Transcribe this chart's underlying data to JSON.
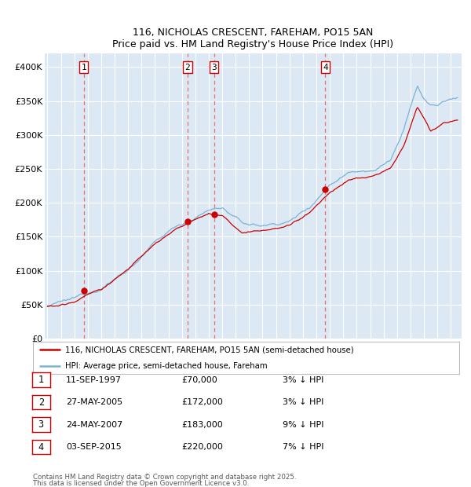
{
  "title_line1": "116, NICHOLAS CRESCENT, FAREHAM, PO15 5AN",
  "title_line2": "Price paid vs. HM Land Registry's House Price Index (HPI)",
  "ylim": [
    0,
    420000
  ],
  "yticks": [
    0,
    50000,
    100000,
    150000,
    200000,
    250000,
    300000,
    350000,
    400000
  ],
  "ytick_labels": [
    "£0",
    "£50K",
    "£100K",
    "£150K",
    "£200K",
    "£250K",
    "£300K",
    "£350K",
    "£400K"
  ],
  "fig_bg_color": "#ffffff",
  "plot_bg_color": "#dce9f5",
  "grid_color": "#ffffff",
  "hpi_color": "#7ab3d4",
  "price_color": "#cc0000",
  "sale_marker_color": "#cc0000",
  "vline_color": "#e87070",
  "annotation_box_edgecolor": "#cc0000",
  "sales": [
    {
      "label": "1",
      "date_x": 1997.7,
      "price": 70000
    },
    {
      "label": "2",
      "date_x": 2005.41,
      "price": 172000
    },
    {
      "label": "3",
      "date_x": 2007.39,
      "price": 183000
    },
    {
      "label": "4",
      "date_x": 2015.67,
      "price": 220000
    }
  ],
  "sale_table": [
    {
      "num": "1",
      "date": "11-SEP-1997",
      "price": "£70,000",
      "hpi": "3% ↓ HPI"
    },
    {
      "num": "2",
      "date": "27-MAY-2005",
      "price": "£172,000",
      "hpi": "3% ↓ HPI"
    },
    {
      "num": "3",
      "date": "24-MAY-2007",
      "price": "£183,000",
      "hpi": "9% ↓ HPI"
    },
    {
      "num": "4",
      "date": "03-SEP-2015",
      "price": "£220,000",
      "hpi": "7% ↓ HPI"
    }
  ],
  "legend_entries": [
    "116, NICHOLAS CRESCENT, FAREHAM, PO15 5AN (semi-detached house)",
    "HPI: Average price, semi-detached house, Fareham"
  ],
  "footer_line1": "Contains HM Land Registry data © Crown copyright and database right 2025.",
  "footer_line2": "This data is licensed under the Open Government Licence v3.0.",
  "xmin": 1994.8,
  "xmax": 2025.8
}
